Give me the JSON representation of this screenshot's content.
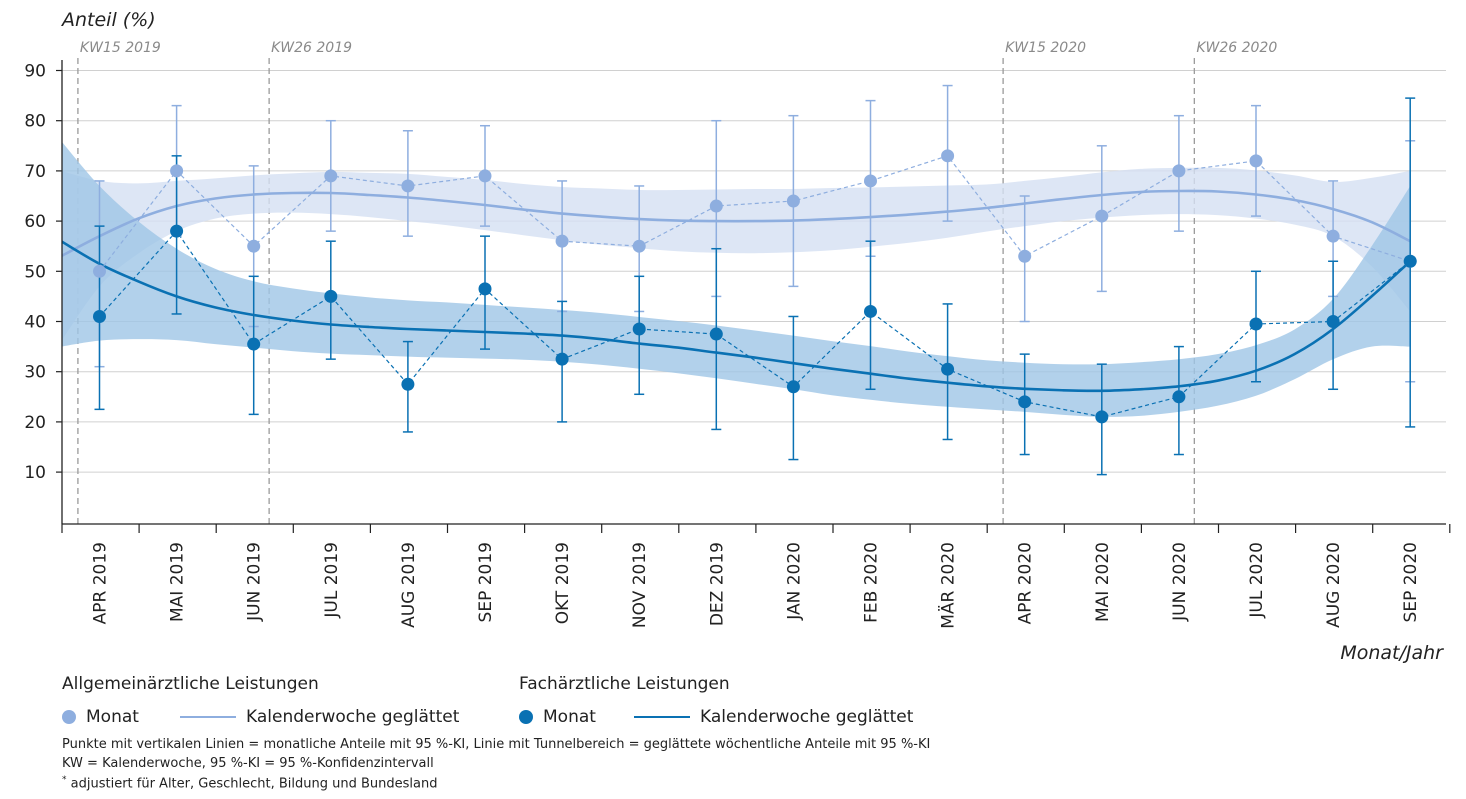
{
  "chart_data": {
    "type": "line",
    "ylabel": "Anteil (%)",
    "xlabel": "Monat/Jahr",
    "ylim": [
      0,
      92
    ],
    "yticks": [
      10,
      20,
      30,
      40,
      50,
      60,
      70,
      80,
      90
    ],
    "categories": [
      "APR 2019",
      "MAI 2019",
      "JUN 2019",
      "JUL 2019",
      "AUG 2019",
      "SEP 2019",
      "OKT 2019",
      "NOV 2019",
      "DEZ 2019",
      "JAN 2020",
      "FEB 2020",
      "MÄR 2020",
      "APR 2020",
      "MAI 2020",
      "JUN 2020",
      "JUL 2020",
      "AUG 2020",
      "SEP 2020"
    ],
    "vlines": [
      {
        "label": "KW15 2019",
        "x": -0.28
      },
      {
        "label": "KW26 2019",
        "x": 2.2
      },
      {
        "label": "KW15 2020",
        "x": 11.72
      },
      {
        "label": "KW26 2020",
        "x": 14.2
      }
    ],
    "grid": true,
    "series": [
      {
        "name": "Monat",
        "group": "Allgemeinärztliche Leistungen",
        "kind": "points",
        "color": "#8eaedf",
        "values": [
          50,
          70,
          55,
          69,
          67,
          69,
          56,
          55,
          63,
          64,
          68,
          73,
          53,
          61,
          70,
          72,
          57,
          52
        ],
        "ci_low": [
          31,
          57,
          39,
          58,
          57,
          59,
          42,
          42,
          45,
          47,
          53,
          60,
          40,
          46,
          58,
          61,
          45,
          28
        ],
        "ci_high": [
          68,
          83,
          71,
          80,
          78,
          79,
          68,
          67,
          80,
          81,
          84,
          87,
          65,
          75,
          81,
          83,
          68,
          76
        ]
      },
      {
        "name": "Kalenderwoche geglättet",
        "group": "Allgemeinärztliche Leistungen",
        "kind": "smooth",
        "color": "#8eaedf",
        "band_color": "#d5e0f3",
        "x": [
          -0.5,
          0,
          0.5,
          1,
          1.5,
          2,
          2.5,
          3,
          3.5,
          4,
          4.5,
          5,
          5.5,
          6,
          6.5,
          7,
          7.5,
          8,
          8.5,
          9,
          9.5,
          10,
          10.5,
          11,
          11.5,
          12,
          12.5,
          13,
          13.5,
          14,
          14.5,
          15,
          15.5,
          16,
          16.5,
          17
        ],
        "values": [
          53,
          57,
          60.5,
          63,
          64.5,
          65.3,
          65.6,
          65.6,
          65.2,
          64.7,
          64,
          63.2,
          62.3,
          61.5,
          60.9,
          60.4,
          60.1,
          60,
          60,
          60.1,
          60.4,
          60.8,
          61.3,
          61.9,
          62.6,
          63.5,
          64.4,
          65.2,
          65.8,
          66,
          65.9,
          65.3,
          64.2,
          62.4,
          59.8,
          56
        ],
        "lower": [
          36,
          47,
          53.5,
          58,
          60.5,
          61.5,
          61.7,
          61.4,
          60.8,
          60,
          59.2,
          58.2,
          57.2,
          56.2,
          55.3,
          54.6,
          54,
          53.7,
          53.6,
          53.8,
          54.2,
          54.9,
          55.7,
          56.7,
          57.9,
          59,
          60,
          60.7,
          61.2,
          61.4,
          61.2,
          60.5,
          59.3,
          57,
          51,
          42
        ],
        "upper": [
          70,
          68,
          67.5,
          68,
          68.5,
          69.1,
          69.5,
          69.8,
          69.6,
          69.4,
          68.8,
          68.2,
          67.4,
          66.8,
          66.5,
          66.2,
          66.2,
          66.3,
          66.4,
          66.4,
          66.6,
          66.7,
          66.9,
          67.1,
          67.3,
          68,
          68.8,
          69.7,
          70.4,
          70.6,
          70.6,
          70.1,
          69.1,
          67.8,
          68.6,
          70
        ]
      },
      {
        "name": "Monat",
        "group": "Fachärztliche Leistungen",
        "kind": "points",
        "color": "#0a71b3",
        "values": [
          41,
          58,
          35.5,
          45,
          27.5,
          46.5,
          32.5,
          38.5,
          37.5,
          27,
          42,
          30.5,
          24,
          21,
          25,
          39.5,
          40,
          52
        ],
        "ci_low": [
          22.5,
          41.5,
          21.5,
          32.5,
          18,
          34.5,
          20,
          25.5,
          18.5,
          12.5,
          26.5,
          16.5,
          13.5,
          9.5,
          13.5,
          28,
          26.5,
          19
        ],
        "ci_high": [
          59,
          73,
          49,
          56,
          36,
          57,
          44,
          49,
          54.5,
          41,
          56,
          43.5,
          33.5,
          31.5,
          35,
          50,
          52,
          84.5
        ]
      },
      {
        "name": "Kalenderwoche geglättet",
        "group": "Fachärztliche Leistungen",
        "kind": "smooth",
        "color": "#0a71b3",
        "band_color": "#9fc6e6",
        "x": [
          -0.5,
          0,
          0.5,
          1,
          1.5,
          2,
          2.5,
          3,
          3.5,
          4,
          4.5,
          5,
          5.5,
          6,
          6.5,
          7,
          7.5,
          8,
          8.5,
          9,
          9.5,
          10,
          10.5,
          11,
          11.5,
          12,
          12.5,
          13,
          13.5,
          14,
          14.5,
          15,
          15.5,
          16,
          16.5,
          17
        ],
        "values": [
          56,
          51.5,
          48,
          45,
          42.8,
          41.3,
          40.2,
          39.4,
          38.9,
          38.5,
          38.2,
          37.9,
          37.6,
          37.2,
          36.5,
          35.6,
          34.8,
          33.8,
          32.8,
          31.7,
          30.6,
          29.6,
          28.6,
          27.8,
          27.1,
          26.6,
          26.3,
          26.2,
          26.5,
          27.1,
          28.2,
          30.2,
          33.5,
          38.5,
          45,
          52
        ],
        "lower": [
          35,
          36.2,
          36.5,
          36.3,
          35.5,
          34.8,
          34.1,
          33.6,
          33.3,
          33,
          32.8,
          32.6,
          32.4,
          32,
          31.4,
          30.6,
          29.7,
          28.7,
          27.6,
          26.5,
          25.3,
          24.4,
          23.6,
          23,
          22.5,
          22,
          21.4,
          21,
          21.2,
          22,
          23.2,
          25.2,
          28.5,
          32.5,
          35,
          35
        ],
        "upper": [
          76,
          67,
          60,
          54.5,
          50.5,
          48,
          46.6,
          45.6,
          44.8,
          44.2,
          43.8,
          43.3,
          42.8,
          42.3,
          41.7,
          40.9,
          40.1,
          39.2,
          38.2,
          37.2,
          36.1,
          35.1,
          34,
          33.1,
          32.3,
          31.8,
          31.5,
          31.5,
          31.9,
          32.5,
          33.5,
          35.3,
          38.4,
          44.5,
          55,
          67
        ]
      }
    ]
  },
  "legend": {
    "group1_title": "Allgemeinärztliche Leistungen",
    "group2_title": "Fachärztliche Leistungen",
    "monat_label": "Monat",
    "smooth_label": "Kalenderwoche geglättet"
  },
  "notes": {
    "line1": "Punkte mit vertikalen Linien = monatliche Anteile mit 95 %-KI, Linie mit Tunnelbereich = geglättete wöchentliche Anteile mit 95 %-KI",
    "line2": "KW = Kalenderwoche, 95 %-KI = 95 %-Konfidenzintervall",
    "line3_mark": "*",
    "line3": "adjustiert für Alter, Geschlecht, Bildung und Bundesland"
  }
}
